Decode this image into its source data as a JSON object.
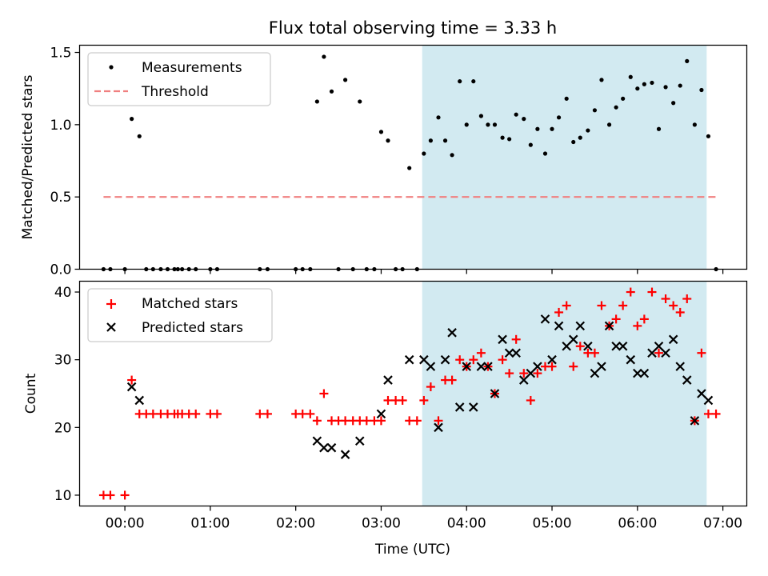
{
  "chart_data": [
    {
      "type": "scatter",
      "title": "Flux total observing time = 3.33 h",
      "ylabel": "Matched/Predicted stars",
      "xlabel": "",
      "ylim": [
        0,
        1.55
      ],
      "yticks": [
        0.0,
        0.5,
        1.0,
        1.5
      ],
      "yticklabels": [
        "0.0",
        "0.5",
        "1.0",
        "1.5"
      ],
      "xlim_hours": [
        -0.53,
        7.28
      ],
      "highlight_span_hours": [
        3.48,
        6.81
      ],
      "highlight_color": "#add8e6",
      "legend": {
        "placement": "upper-left",
        "entries": [
          "Measurements",
          "Threshold"
        ]
      },
      "series": [
        {
          "name": "Measurements",
          "marker": "dot",
          "color": "#000000",
          "x": [
            -0.25,
            -0.17,
            0.0,
            0.08,
            0.17,
            0.25,
            0.33,
            0.42,
            0.5,
            0.58,
            0.62,
            0.67,
            0.75,
            0.83,
            1.0,
            1.08,
            1.58,
            1.67,
            2.0,
            2.08,
            2.17,
            2.25,
            2.33,
            2.42,
            2.5,
            2.58,
            2.67,
            2.75,
            2.83,
            2.92,
            3.0,
            3.08,
            3.17,
            3.25,
            3.33,
            3.42,
            3.5,
            3.58,
            3.67,
            3.75,
            3.83,
            3.92,
            4.0,
            4.08,
            4.17,
            4.25,
            4.33,
            4.42,
            4.5,
            4.58,
            4.67,
            4.75,
            4.83,
            4.92,
            5.0,
            5.08,
            5.17,
            5.25,
            5.33,
            5.42,
            5.5,
            5.58,
            5.67,
            5.75,
            5.83,
            5.92,
            6.0,
            6.08,
            6.17,
            6.25,
            6.33,
            6.42,
            6.5,
            6.58,
            6.67,
            6.75,
            6.83,
            6.92
          ],
          "y": [
            0,
            0,
            0,
            1.04,
            0.92,
            0,
            0,
            0,
            0,
            0,
            0,
            0,
            0,
            0,
            0,
            0,
            0,
            0,
            0,
            0,
            0,
            1.16,
            1.47,
            1.23,
            0,
            1.31,
            0,
            1.16,
            0,
            0,
            0.95,
            0.89,
            0,
            0,
            0.7,
            0,
            0.8,
            0.89,
            1.05,
            0.89,
            0.79,
            1.3,
            1.0,
            1.3,
            1.06,
            1.0,
            1.0,
            0.91,
            0.9,
            1.07,
            1.04,
            0.86,
            0.97,
            0.8,
            0.97,
            1.05,
            1.18,
            0.88,
            0.91,
            0.96,
            1.1,
            1.31,
            1.0,
            1.12,
            1.18,
            1.33,
            1.25,
            1.28,
            1.29,
            0.97,
            1.26,
            1.15,
            1.27,
            1.44,
            1.0,
            1.24,
            0.92,
            0
          ]
        },
        {
          "name": "Threshold",
          "marker": "dashed-line",
          "color": "#f08080",
          "x": [
            -0.25,
            6.92
          ],
          "y": [
            0.5,
            0.5
          ]
        }
      ]
    },
    {
      "type": "scatter",
      "title": "",
      "ylabel": "Count",
      "xlabel": "Time (UTC)",
      "ylim": [
        8.4,
        41.6
      ],
      "yticks": [
        10,
        20,
        30,
        40
      ],
      "yticklabels": [
        "10",
        "20",
        "30",
        "40"
      ],
      "xlim_hours": [
        -0.53,
        7.28
      ],
      "xticks_hours": [
        0,
        1,
        2,
        3,
        4,
        5,
        6,
        7
      ],
      "xticklabels": [
        "00:00",
        "01:00",
        "02:00",
        "03:00",
        "04:00",
        "05:00",
        "06:00",
        "07:00"
      ],
      "highlight_span_hours": [
        3.48,
        6.81
      ],
      "highlight_color": "#add8e6",
      "legend": {
        "placement": "upper-left",
        "entries": [
          "Matched stars",
          "Predicted stars"
        ]
      },
      "series": [
        {
          "name": "Matched stars",
          "marker": "plus",
          "color": "#ff0000",
          "x": [
            -0.25,
            -0.17,
            0.0,
            0.08,
            0.17,
            0.25,
            0.33,
            0.42,
            0.5,
            0.58,
            0.62,
            0.67,
            0.75,
            0.83,
            1.0,
            1.08,
            1.58,
            1.67,
            2.0,
            2.08,
            2.17,
            2.25,
            2.33,
            2.42,
            2.5,
            2.58,
            2.67,
            2.75,
            2.83,
            2.92,
            3.0,
            3.08,
            3.17,
            3.25,
            3.33,
            3.42,
            3.5,
            3.58,
            3.67,
            3.75,
            3.83,
            3.92,
            4.0,
            4.08,
            4.17,
            4.25,
            4.33,
            4.42,
            4.5,
            4.58,
            4.67,
            4.75,
            4.83,
            4.92,
            5.0,
            5.08,
            5.17,
            5.25,
            5.33,
            5.42,
            5.5,
            5.58,
            5.67,
            5.75,
            5.83,
            5.92,
            6.0,
            6.08,
            6.17,
            6.25,
            6.33,
            6.42,
            6.5,
            6.58,
            6.67,
            6.75,
            6.83,
            6.92
          ],
          "y": [
            10,
            10,
            10,
            27,
            22,
            22,
            22,
            22,
            22,
            22,
            22,
            22,
            22,
            22,
            22,
            22,
            22,
            22,
            22,
            22,
            22,
            21,
            25,
            21,
            21,
            21,
            21,
            21,
            21,
            21,
            21,
            24,
            24,
            24,
            21,
            21,
            24,
            26,
            21,
            27,
            27,
            30,
            29,
            30,
            31,
            29,
            25,
            30,
            28,
            33,
            28,
            24,
            28,
            29,
            29,
            37,
            38,
            29,
            32,
            31,
            31,
            38,
            35,
            36,
            38,
            40,
            35,
            36,
            40,
            31,
            39,
            38,
            37,
            39,
            21,
            31,
            22,
            22
          ]
        },
        {
          "name": "Predicted stars",
          "marker": "x",
          "color": "#000000",
          "x": [
            0.08,
            0.17,
            2.25,
            2.33,
            2.42,
            2.58,
            2.75,
            3.0,
            3.08,
            3.33,
            3.5,
            3.58,
            3.67,
            3.75,
            3.83,
            3.92,
            4.0,
            4.08,
            4.17,
            4.25,
            4.33,
            4.42,
            4.5,
            4.58,
            4.67,
            4.75,
            4.83,
            4.92,
            5.0,
            5.08,
            5.17,
            5.25,
            5.33,
            5.42,
            5.5,
            5.58,
            5.67,
            5.75,
            5.83,
            5.92,
            6.0,
            6.08,
            6.17,
            6.25,
            6.33,
            6.42,
            6.5,
            6.58,
            6.67,
            6.75,
            6.83
          ],
          "y": [
            26,
            24,
            18,
            17,
            17,
            16,
            18,
            22,
            27,
            30,
            30,
            29,
            20,
            30,
            34,
            23,
            29,
            23,
            29,
            29,
            25,
            33,
            31,
            31,
            27,
            28,
            29,
            36,
            30,
            35,
            32,
            33,
            35,
            32,
            28,
            29,
            35,
            32,
            32,
            30,
            28,
            28,
            31,
            32,
            31,
            33,
            29,
            27,
            21,
            25,
            24
          ]
        }
      ]
    }
  ]
}
